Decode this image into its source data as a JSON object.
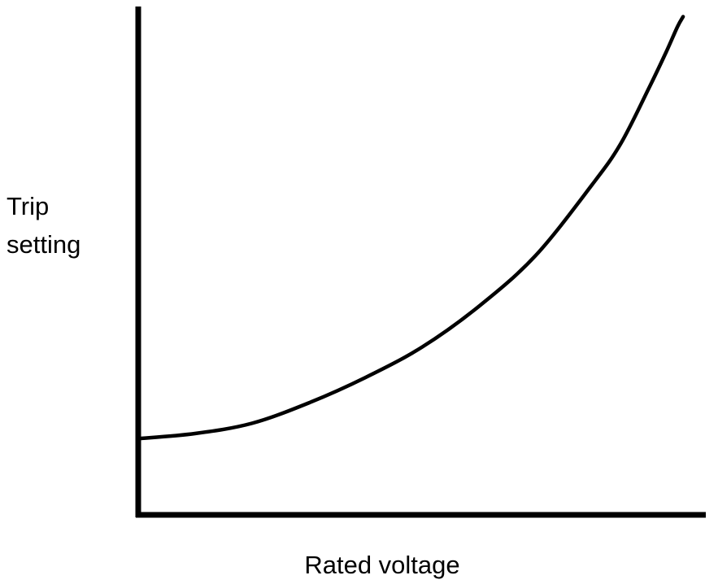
{
  "chart_data": {
    "type": "line",
    "title": "",
    "xlabel": "Rated voltage",
    "ylabel": [
      "Trip",
      "setting"
    ],
    "xlim": [
      0,
      1
    ],
    "ylim": [
      0,
      1
    ],
    "grid": false,
    "legend": "none",
    "series": [
      {
        "x": [
          0.0,
          0.1,
          0.2,
          0.3,
          0.4,
          0.5,
          0.6,
          0.7,
          0.8,
          0.85,
          0.9,
          0.93,
          0.95,
          0.96
        ],
        "y": [
          0.15,
          0.16,
          0.18,
          0.22,
          0.27,
          0.33,
          0.41,
          0.51,
          0.65,
          0.73,
          0.84,
          0.91,
          0.96,
          0.98
        ],
        "color": "#000000"
      }
    ]
  }
}
